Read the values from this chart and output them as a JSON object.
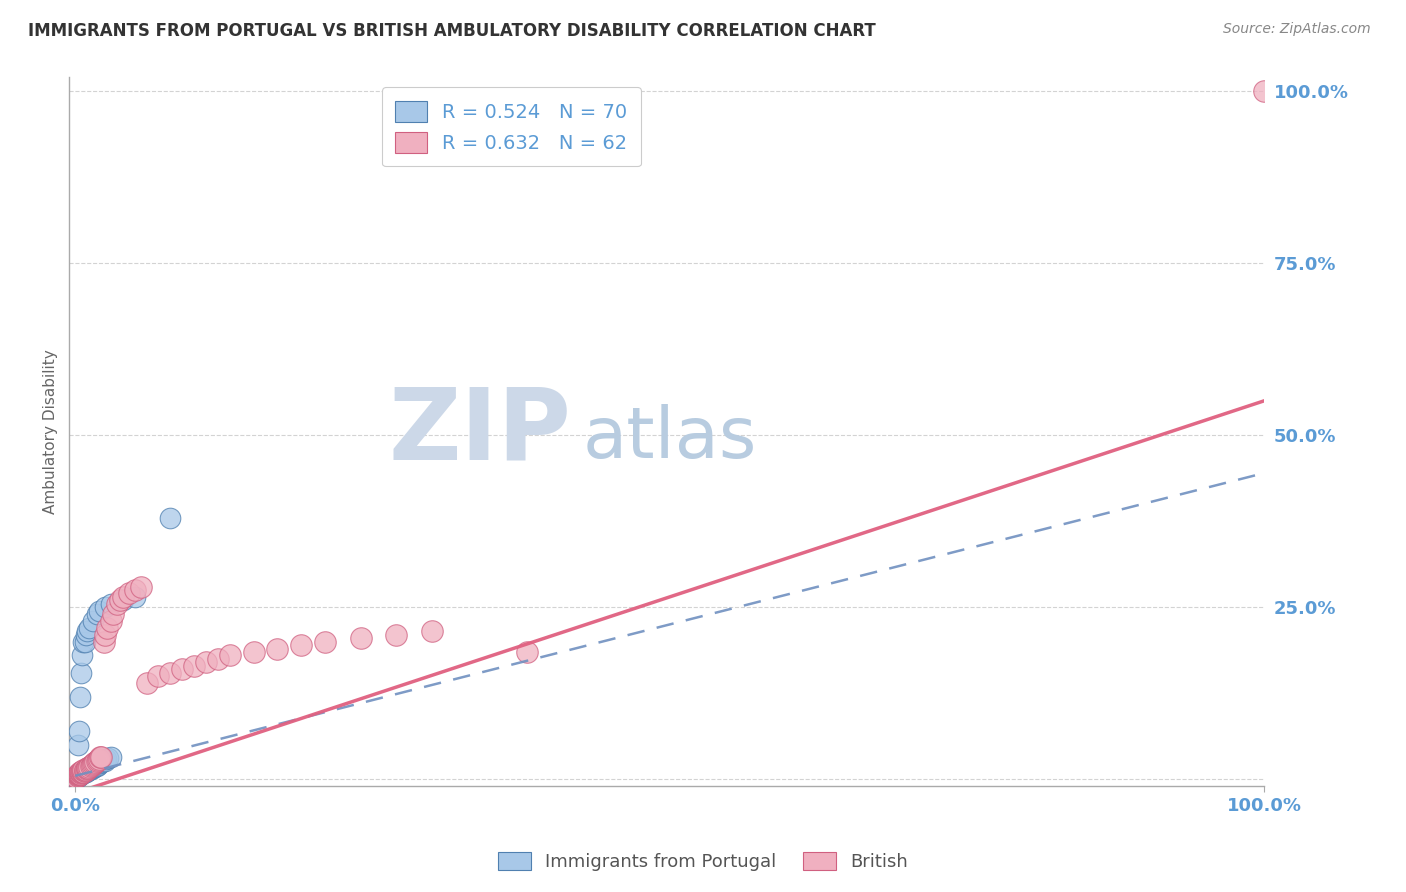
{
  "title": "IMMIGRANTS FROM PORTUGAL VS BRITISH AMBULATORY DISABILITY CORRELATION CHART",
  "source_text": "Source: ZipAtlas.com",
  "ylabel": "Ambulatory Disability",
  "legend_blue_label": "Immigrants from Portugal",
  "legend_pink_label": "British",
  "R_blue": 0.524,
  "N_blue": 70,
  "R_pink": 0.632,
  "N_pink": 62,
  "blue_color": "#a8c8e8",
  "pink_color": "#f0b0c0",
  "blue_edge_color": "#5080b0",
  "pink_edge_color": "#d06080",
  "blue_line_color": "#7090c0",
  "pink_line_color": "#e06080",
  "title_color": "#333333",
  "axis_label_color": "#5b9bd5",
  "watermark_zip_color": "#ccd8e8",
  "watermark_atlas_color": "#b8cce0",
  "background_color": "#ffffff",
  "grid_color": "#c8c8c8",
  "blue_slope": 0.44,
  "blue_intercept": 0.005,
  "pink_slope": 0.57,
  "pink_intercept": -0.02,
  "blue_points_x": [
    0.001,
    0.002,
    0.002,
    0.002,
    0.003,
    0.003,
    0.003,
    0.003,
    0.004,
    0.004,
    0.004,
    0.005,
    0.005,
    0.005,
    0.006,
    0.006,
    0.006,
    0.007,
    0.007,
    0.007,
    0.008,
    0.008,
    0.008,
    0.009,
    0.009,
    0.01,
    0.01,
    0.01,
    0.011,
    0.011,
    0.012,
    0.012,
    0.013,
    0.013,
    0.014,
    0.015,
    0.015,
    0.016,
    0.017,
    0.018,
    0.018,
    0.019,
    0.02,
    0.021,
    0.022,
    0.023,
    0.025,
    0.026,
    0.028,
    0.03,
    0.001,
    0.001,
    0.002,
    0.003,
    0.004,
    0.005,
    0.006,
    0.007,
    0.008,
    0.009,
    0.01,
    0.012,
    0.015,
    0.018,
    0.02,
    0.025,
    0.03,
    0.04,
    0.05,
    0.08
  ],
  "blue_points_y": [
    0.003,
    0.004,
    0.005,
    0.006,
    0.005,
    0.006,
    0.007,
    0.008,
    0.006,
    0.007,
    0.008,
    0.007,
    0.008,
    0.009,
    0.008,
    0.009,
    0.01,
    0.009,
    0.01,
    0.012,
    0.01,
    0.011,
    0.013,
    0.011,
    0.013,
    0.012,
    0.014,
    0.016,
    0.013,
    0.015,
    0.014,
    0.017,
    0.015,
    0.018,
    0.016,
    0.017,
    0.02,
    0.018,
    0.02,
    0.019,
    0.022,
    0.021,
    0.023,
    0.024,
    0.025,
    0.026,
    0.027,
    0.029,
    0.031,
    0.033,
    0.002,
    0.003,
    0.05,
    0.07,
    0.12,
    0.155,
    0.18,
    0.2,
    0.2,
    0.21,
    0.215,
    0.22,
    0.23,
    0.24,
    0.245,
    0.25,
    0.255,
    0.26,
    0.265,
    0.38
  ],
  "pink_points_x": [
    0.001,
    0.001,
    0.002,
    0.002,
    0.002,
    0.003,
    0.003,
    0.003,
    0.004,
    0.004,
    0.004,
    0.005,
    0.005,
    0.006,
    0.006,
    0.007,
    0.007,
    0.008,
    0.008,
    0.009,
    0.01,
    0.01,
    0.011,
    0.012,
    0.013,
    0.014,
    0.015,
    0.016,
    0.017,
    0.018,
    0.019,
    0.02,
    0.021,
    0.022,
    0.024,
    0.025,
    0.027,
    0.03,
    0.032,
    0.035,
    0.038,
    0.04,
    0.045,
    0.05,
    0.055,
    0.06,
    0.07,
    0.08,
    0.09,
    0.1,
    0.11,
    0.12,
    0.13,
    0.15,
    0.17,
    0.19,
    0.21,
    0.24,
    0.27,
    0.3,
    0.38,
    1.0
  ],
  "pink_points_y": [
    0.003,
    0.004,
    0.005,
    0.006,
    0.007,
    0.006,
    0.007,
    0.008,
    0.007,
    0.008,
    0.01,
    0.009,
    0.011,
    0.01,
    0.012,
    0.011,
    0.013,
    0.012,
    0.014,
    0.013,
    0.015,
    0.017,
    0.016,
    0.018,
    0.02,
    0.021,
    0.022,
    0.024,
    0.025,
    0.027,
    0.028,
    0.03,
    0.032,
    0.033,
    0.2,
    0.21,
    0.22,
    0.23,
    0.24,
    0.255,
    0.26,
    0.265,
    0.27,
    0.275,
    0.28,
    0.14,
    0.15,
    0.155,
    0.16,
    0.165,
    0.17,
    0.175,
    0.18,
    0.185,
    0.19,
    0.195,
    0.2,
    0.205,
    0.21,
    0.215,
    0.185,
    1.0
  ]
}
